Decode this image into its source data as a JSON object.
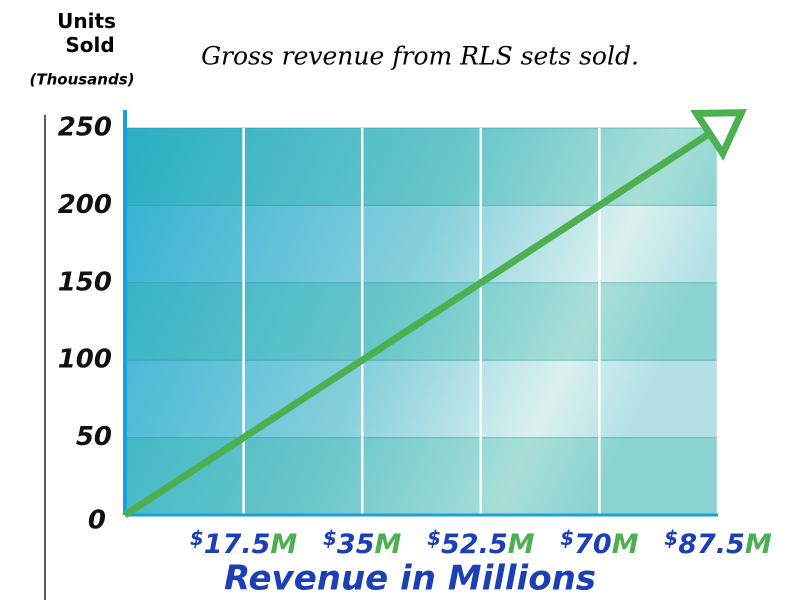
{
  "chart_data": {
    "type": "line",
    "title": "Gross revenue from RLS sets sold.",
    "y_label": "Units Sold",
    "y_unit": "(Thousands)",
    "x_label": "Revenue in Millions",
    "x": [
      0,
      17.5,
      35,
      52.5,
      70,
      87.5
    ],
    "values": [
      0,
      50,
      100,
      150,
      200,
      250
    ],
    "color": "#4caf50",
    "xlim": [
      0,
      87.5
    ],
    "xticks": [
      {
        "value": 17.5,
        "label": "$17.5M"
      },
      {
        "value": 35,
        "label": "$35M"
      },
      {
        "value": 52.5,
        "label": "$52.5M"
      },
      {
        "value": 70,
        "label": "$70M"
      },
      {
        "value": 87.5,
        "label": "$87.5M"
      }
    ],
    "ylim": [
      0,
      250
    ],
    "yticks": [
      0,
      50,
      100,
      150,
      200,
      250
    ],
    "grid": true
  }
}
